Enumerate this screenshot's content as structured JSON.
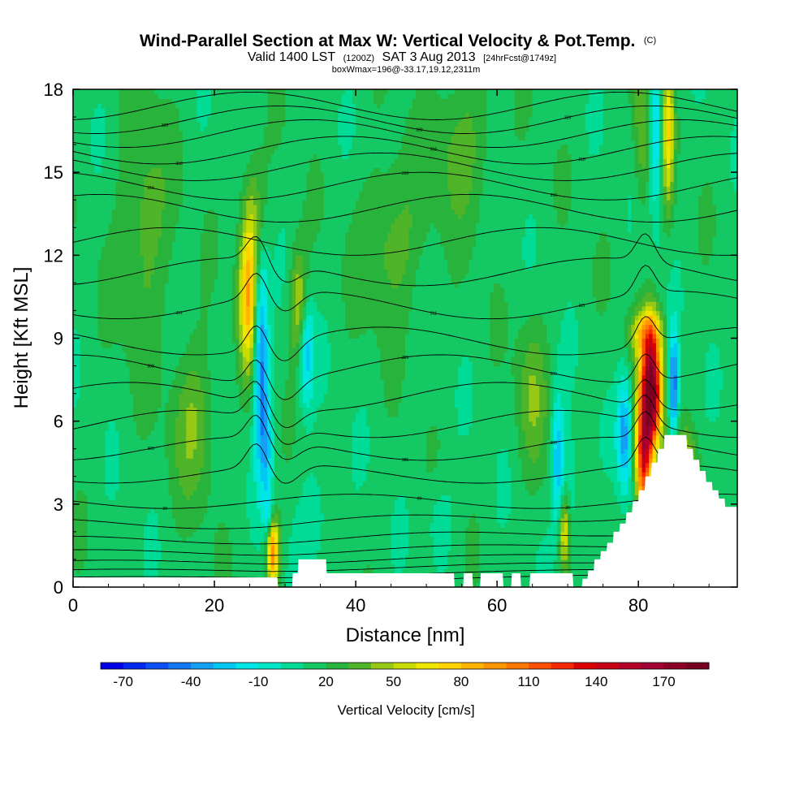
{
  "chart_data": {
    "type": "heatmap",
    "title": "Wind-Parallel Section at Max W: Vertical Velocity & Pot.Temp.",
    "title_mark": "(C)",
    "subtitle_parts": [
      "Valid 1400 LST",
      "(1200Z)",
      "SAT 3 Aug 2013",
      "[24hrFcst@1749z]"
    ],
    "subtitle2": "boxWmax=196@-33.17,19.12,2311m",
    "xlabel": "Distance [nm]",
    "ylabel": "Height [Kft MSL]",
    "xlim": [
      0,
      94
    ],
    "ylim": [
      0,
      18
    ],
    "x_ticks": [
      0,
      20,
      40,
      60,
      80
    ],
    "y_ticks": [
      0,
      3,
      6,
      9,
      12,
      15,
      18
    ],
    "colorbar": {
      "title": "Vertical Velocity [cm/s]",
      "min": -80,
      "max": 190,
      "step": 10,
      "tick_values": [
        -70,
        -40,
        -10,
        20,
        50,
        80,
        110,
        140,
        170
      ],
      "colors": [
        "#0000e6",
        "#0028f0",
        "#0a50f5",
        "#1478f5",
        "#14a0f5",
        "#00c8f5",
        "#00e6e6",
        "#00e6c8",
        "#00dc96",
        "#14c864",
        "#28b43c",
        "#50b428",
        "#96c814",
        "#c8dc00",
        "#f0e600",
        "#ffd200",
        "#ffb400",
        "#ff9600",
        "#ff7800",
        "#ff5000",
        "#f52800",
        "#dc0000",
        "#c80014",
        "#b40028",
        "#a00032",
        "#8c0028",
        "#780020"
      ]
    },
    "background_w": 15,
    "w_features": [
      {
        "x": 24.8,
        "z": 10.5,
        "sx": 0.9,
        "sz": 1.8,
        "w": 70
      },
      {
        "x": 26.6,
        "z": 8.5,
        "sx": 0.7,
        "sz": 2.4,
        "w": -60
      },
      {
        "x": 27.3,
        "z": 5.0,
        "sx": 0.8,
        "sz": 1.5,
        "w": -35
      },
      {
        "x": 25.5,
        "z": 13.5,
        "sx": 1.2,
        "sz": 1.5,
        "w": 25
      },
      {
        "x": 28.3,
        "z": 1.3,
        "sx": 0.6,
        "sz": 0.9,
        "w": 85
      },
      {
        "x": 27.7,
        "z": 2.6,
        "sx": 0.5,
        "sz": 0.6,
        "w": -25
      },
      {
        "x": 32.0,
        "z": 10.2,
        "sx": 0.9,
        "sz": 1.4,
        "w": 40
      },
      {
        "x": 33.0,
        "z": 8.6,
        "sx": 0.7,
        "sz": 1.4,
        "w": -45
      },
      {
        "x": 34.5,
        "z": 2.5,
        "sx": 2.0,
        "sz": 1.5,
        "w": -12
      },
      {
        "x": 17.0,
        "z": 6.0,
        "sx": 2.0,
        "sz": 2.0,
        "w": 25
      },
      {
        "x": 65.0,
        "z": 7.0,
        "sx": 1.5,
        "sz": 2.0,
        "w": 22
      },
      {
        "x": 52.0,
        "z": 2.5,
        "sx": 1.5,
        "sz": 1.0,
        "w": -12
      },
      {
        "x": 68.6,
        "z": 4.6,
        "sx": 0.6,
        "sz": 1.6,
        "w": -45
      },
      {
        "x": 69.5,
        "z": 2.0,
        "sx": 0.5,
        "sz": 1.0,
        "w": 50
      },
      {
        "x": 70.5,
        "z": 3.5,
        "sx": 1.0,
        "sz": 1.5,
        "w": -15
      },
      {
        "x": 78.0,
        "z": 5.5,
        "sx": 0.7,
        "sz": 1.4,
        "w": -50
      },
      {
        "x": 81.8,
        "z": 7.1,
        "sx": 1.0,
        "sz": 1.5,
        "w": 180
      },
      {
        "x": 80.7,
        "z": 4.6,
        "sx": 0.7,
        "sz": 1.4,
        "w": 110
      },
      {
        "x": 81.0,
        "z": 9.2,
        "sx": 1.5,
        "sz": 0.6,
        "w": 45
      },
      {
        "x": 85.0,
        "z": 7.3,
        "sx": 0.5,
        "sz": 1.4,
        "w": -65
      },
      {
        "x": 82.5,
        "z": 16.5,
        "sx": 0.6,
        "sz": 2.0,
        "w": -40
      },
      {
        "x": 84.2,
        "z": 16.5,
        "sx": 0.6,
        "sz": 2.0,
        "w": 50
      },
      {
        "x": 80.5,
        "z": 16.5,
        "sx": 0.8,
        "sz": 2.0,
        "w": 25
      },
      {
        "x": 86.5,
        "z": 4.5,
        "sx": 1.2,
        "sz": 0.8,
        "w": 35
      },
      {
        "x": 10.0,
        "z": 13.0,
        "sx": 2.5,
        "sz": 3.0,
        "w": 22
      },
      {
        "x": 45.0,
        "z": 12.5,
        "sx": 3.0,
        "sz": 2.0,
        "w": 22
      },
      {
        "x": 55.0,
        "z": 16.0,
        "sx": 3.0,
        "sz": 2.0,
        "w": 20
      }
    ],
    "terrain": [
      [
        0,
        0.35
      ],
      [
        28.9,
        0.35
      ],
      [
        29.0,
        0
      ],
      [
        31.0,
        0
      ],
      [
        31.1,
        0.5
      ],
      [
        31.8,
        0.5
      ],
      [
        31.9,
        1.0
      ],
      [
        35.8,
        1.0
      ],
      [
        35.9,
        0.5
      ],
      [
        53.9,
        0.5
      ],
      [
        54.0,
        0
      ],
      [
        55.2,
        0
      ],
      [
        55.3,
        0.5
      ],
      [
        56.5,
        0.5
      ],
      [
        56.6,
        0
      ],
      [
        57.6,
        0
      ],
      [
        57.7,
        0.5
      ],
      [
        60.8,
        0.5
      ],
      [
        60.9,
        0
      ],
      [
        62.0,
        0
      ],
      [
        62.1,
        0.5
      ],
      [
        63.3,
        0.5
      ],
      [
        63.4,
        0
      ],
      [
        64.6,
        0
      ],
      [
        64.7,
        0.5
      ],
      [
        70.7,
        0.5
      ],
      [
        70.8,
        0
      ],
      [
        72.0,
        0
      ],
      [
        72.1,
        0.3
      ],
      [
        72.8,
        0.3
      ],
      [
        72.9,
        0.6
      ],
      [
        73.7,
        0.6
      ],
      [
        73.8,
        1.0
      ],
      [
        74.6,
        1.0
      ],
      [
        74.7,
        1.3
      ],
      [
        75.5,
        1.3
      ],
      [
        75.6,
        1.6
      ],
      [
        76.4,
        1.6
      ],
      [
        76.5,
        2.0
      ],
      [
        77.3,
        2.0
      ],
      [
        77.4,
        2.3
      ],
      [
        78.2,
        2.3
      ],
      [
        78.3,
        2.7
      ],
      [
        79.1,
        2.7
      ],
      [
        79.2,
        3.1
      ],
      [
        80.0,
        3.1
      ],
      [
        80.1,
        3.5
      ],
      [
        80.9,
        3.5
      ],
      [
        81.0,
        4.0
      ],
      [
        81.8,
        4.0
      ],
      [
        81.9,
        4.5
      ],
      [
        82.7,
        4.5
      ],
      [
        82.8,
        5.0
      ],
      [
        83.6,
        5.0
      ],
      [
        83.7,
        5.5
      ],
      [
        86.8,
        5.5
      ],
      [
        86.9,
        5.0
      ],
      [
        87.7,
        5.0
      ],
      [
        87.8,
        4.6
      ],
      [
        88.6,
        4.6
      ],
      [
        88.7,
        4.2
      ],
      [
        89.5,
        4.2
      ],
      [
        89.6,
        3.8
      ],
      [
        90.4,
        3.8
      ],
      [
        90.5,
        3.5
      ],
      [
        91.3,
        3.5
      ],
      [
        91.4,
        3.2
      ],
      [
        92.2,
        3.2
      ],
      [
        92.3,
        2.9
      ],
      [
        94,
        2.9
      ],
      [
        94,
        0
      ]
    ],
    "theta_levels": [
      {
        "z": 0.15,
        "label": ""
      },
      {
        "z": 0.35,
        "label": ""
      },
      {
        "z": 0.6,
        "label": ""
      },
      {
        "z": 0.9,
        "label": ""
      },
      {
        "z": 1.25,
        "label": ""
      },
      {
        "z": 1.7,
        "label": ""
      },
      {
        "z": 2.3,
        "label": ""
      },
      {
        "z": 3.1,
        "label": "20"
      },
      {
        "z": 4.1,
        "label": ""
      },
      {
        "z": 5.0,
        "label": "305"
      },
      {
        "z": 5.9,
        "label": ""
      },
      {
        "z": 6.9,
        "label": ""
      },
      {
        "z": 7.9,
        "label": "309"
      },
      {
        "z": 8.9,
        "label": ""
      },
      {
        "z": 10.2,
        "label": "311"
      },
      {
        "z": 11.4,
        "label": ""
      },
      {
        "z": 12.5,
        "label": ""
      },
      {
        "z": 13.7,
        "label": ""
      },
      {
        "z": 14.5,
        "label": "316"
      },
      {
        "z": 15.2,
        "label": ""
      },
      {
        "z": 15.8,
        "label": "318"
      },
      {
        "z": 16.4,
        "label": ""
      },
      {
        "z": 16.9,
        "label": "320"
      },
      {
        "z": 17.4,
        "label": ""
      }
    ]
  }
}
